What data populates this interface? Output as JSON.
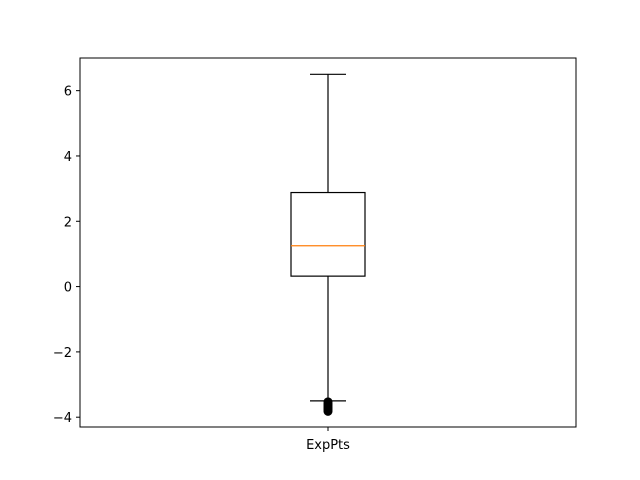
{
  "chart_data": {
    "type": "box",
    "title": "",
    "xlabel": "",
    "ylabel": "",
    "categories": [
      "ExpPts"
    ],
    "ylim": [
      -4.3,
      7.0
    ],
    "yticks": [
      -4,
      -2,
      0,
      2,
      4,
      6
    ],
    "ytick_labels": [
      "−4",
      "−2",
      "0",
      "2",
      "4",
      "6"
    ],
    "grid": false,
    "box": {
      "whisker_low": -3.5,
      "q1": 0.32,
      "median": 1.25,
      "q3": 2.88,
      "whisker_high": 6.5,
      "outliers": [
        -3.53,
        -3.58,
        -3.62,
        -3.66,
        -3.7,
        -3.74,
        -3.78,
        -3.82
      ]
    },
    "colors": {
      "box": "#000000",
      "median": "#ff7f0e",
      "whisker": "#000000",
      "outlier": "#000000"
    }
  }
}
